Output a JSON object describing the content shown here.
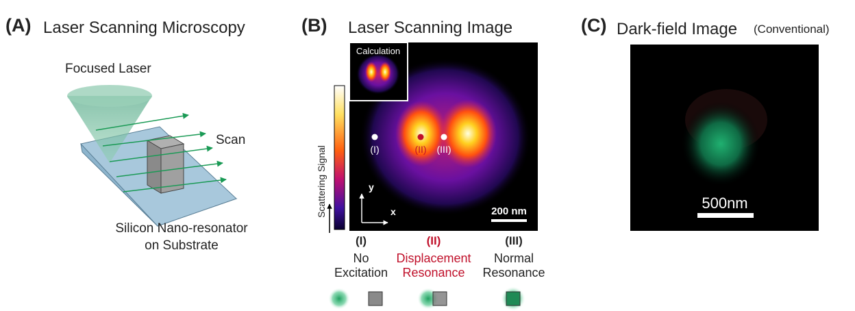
{
  "panel_a": {
    "letter": "(A)",
    "title": "Laser Scanning Microscopy",
    "laser_label": "Focused Laser",
    "scan_label": "Scan",
    "sample_label": [
      "Silicon Nano-resonator",
      "on Substrate"
    ]
  },
  "panel_b": {
    "letter": "(B)",
    "title": "Laser Scanning Image",
    "inset_label": "Calculation",
    "colorbar_label": "Scattering Signal",
    "markers": [
      "(I)",
      "(II)",
      "(III)"
    ],
    "axis_y": "y",
    "axis_x": "x",
    "scale_bar": "200 nm",
    "columns": [
      {
        "id": "(I)",
        "lines": [
          "No",
          "Excitation"
        ]
      },
      {
        "id": "(II)",
        "lines": [
          "Displacement",
          "Resonance"
        ]
      },
      {
        "id": "(III)",
        "lines": [
          "Normal",
          "Resonance"
        ]
      }
    ]
  },
  "panel_c": {
    "letter": "(C)",
    "title": "Dark-field Image",
    "subtitle": "(Conventional)",
    "scale_bar": "500nm"
  }
}
